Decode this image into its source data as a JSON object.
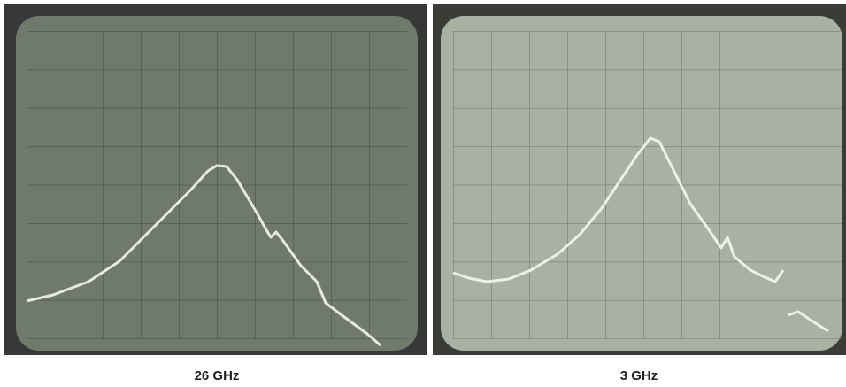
{
  "panels": [
    {
      "caption": "26 GHz"
    },
    {
      "caption": "3 GHz"
    }
  ]
}
